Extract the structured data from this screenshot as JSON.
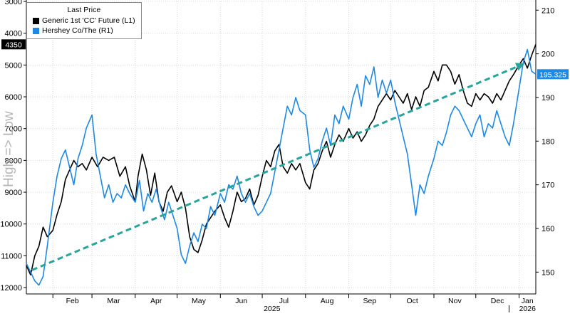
{
  "legend": {
    "title": "Last Price",
    "items": [
      {
        "label": "Generic 1st 'CC' Future  (L1)",
        "color": "#000000"
      },
      {
        "label": "Hershey Co/The  (R1)",
        "color": "#1e88e5"
      }
    ]
  },
  "side_label": "High => Low",
  "chart_data": {
    "type": "line",
    "xlabel": "2025",
    "x_secondary_label": "2026",
    "x_ticks": [
      "Feb",
      "Mar",
      "Apr",
      "May",
      "Jun",
      "Jul",
      "Aug",
      "Sep",
      "Oct",
      "Nov",
      "Dec",
      "Jan"
    ],
    "x_range": [
      "2025-01-13",
      "2026-01-13"
    ],
    "left_axis": {
      "inverted": true,
      "range": [
        3000,
        12200
      ],
      "ticks": [
        3000,
        4000,
        5000,
        6000,
        7000,
        8000,
        9000,
        10000,
        11000,
        12000
      ]
    },
    "right_axis": {
      "range": [
        145,
        212
      ],
      "ticks": [
        150,
        160,
        170,
        180,
        190,
        200,
        210
      ]
    },
    "last_value_labels": {
      "left": "4350",
      "right": "195.325"
    },
    "series": [
      {
        "name": "Generic 1st 'CC' Future  (L1)",
        "axis": "left",
        "color": "#000000",
        "points": [
          [
            "2025-01-13",
            11300
          ],
          [
            "2025-01-16",
            11600
          ],
          [
            "2025-01-19",
            11000
          ],
          [
            "2025-01-22",
            10700
          ],
          [
            "2025-01-25",
            10100
          ],
          [
            "2025-01-28",
            10400
          ],
          [
            "2025-02-01",
            10200
          ],
          [
            "2025-02-04",
            9700
          ],
          [
            "2025-02-07",
            9300
          ],
          [
            "2025-02-10",
            8600
          ],
          [
            "2025-02-13",
            8300
          ],
          [
            "2025-02-16",
            8000
          ],
          [
            "2025-02-19",
            8200
          ],
          [
            "2025-02-22",
            8100
          ],
          [
            "2025-02-25",
            8300
          ],
          [
            "2025-03-01",
            7900
          ],
          [
            "2025-03-05",
            8200
          ],
          [
            "2025-03-09",
            7900
          ],
          [
            "2025-03-13",
            8000
          ],
          [
            "2025-03-17",
            7900
          ],
          [
            "2025-03-21",
            8500
          ],
          [
            "2025-03-25",
            8200
          ],
          [
            "2025-03-28",
            8800
          ],
          [
            "2025-04-01",
            9300
          ],
          [
            "2025-04-03",
            8500
          ],
          [
            "2025-04-06",
            7800
          ],
          [
            "2025-04-09",
            8300
          ],
          [
            "2025-04-12",
            9100
          ],
          [
            "2025-04-15",
            8400
          ],
          [
            "2025-04-18",
            9300
          ],
          [
            "2025-04-21",
            9600
          ],
          [
            "2025-04-24",
            9000
          ],
          [
            "2025-04-27",
            8800
          ],
          [
            "2025-05-01",
            9300
          ],
          [
            "2025-05-04",
            9000
          ],
          [
            "2025-05-07",
            9500
          ],
          [
            "2025-05-10",
            10400
          ],
          [
            "2025-05-13",
            10800
          ],
          [
            "2025-05-16",
            10900
          ],
          [
            "2025-05-19",
            10500
          ],
          [
            "2025-05-22",
            10000
          ],
          [
            "2025-05-25",
            9800
          ],
          [
            "2025-05-28",
            9600
          ],
          [
            "2025-06-01",
            9400
          ],
          [
            "2025-06-04",
            9800
          ],
          [
            "2025-06-07",
            10100
          ],
          [
            "2025-06-10",
            9600
          ],
          [
            "2025-06-13",
            9000
          ],
          [
            "2025-06-16",
            9300
          ],
          [
            "2025-06-19",
            9200
          ],
          [
            "2025-06-22",
            8900
          ],
          [
            "2025-06-25",
            9400
          ],
          [
            "2025-06-28",
            9100
          ],
          [
            "2025-07-01",
            8500
          ],
          [
            "2025-07-04",
            8000
          ],
          [
            "2025-07-07",
            8200
          ],
          [
            "2025-07-10",
            7700
          ],
          [
            "2025-07-13",
            7500
          ],
          [
            "2025-07-16",
            8200
          ],
          [
            "2025-07-19",
            8400
          ],
          [
            "2025-07-22",
            8100
          ],
          [
            "2025-07-25",
            8300
          ],
          [
            "2025-07-28",
            8100
          ],
          [
            "2025-08-01",
            8700
          ],
          [
            "2025-08-04",
            8900
          ],
          [
            "2025-08-07",
            8300
          ],
          [
            "2025-08-10",
            8100
          ],
          [
            "2025-08-13",
            7700
          ],
          [
            "2025-08-16",
            7400
          ],
          [
            "2025-08-19",
            7900
          ],
          [
            "2025-08-22",
            7500
          ],
          [
            "2025-08-25",
            7200
          ],
          [
            "2025-08-28",
            7400
          ],
          [
            "2025-09-01",
            7000
          ],
          [
            "2025-09-04",
            7300
          ],
          [
            "2025-09-07",
            7100
          ],
          [
            "2025-09-10",
            7400
          ],
          [
            "2025-09-13",
            7200
          ],
          [
            "2025-09-16",
            6900
          ],
          [
            "2025-09-19",
            6700
          ],
          [
            "2025-09-22",
            6300
          ],
          [
            "2025-09-25",
            6100
          ],
          [
            "2025-09-28",
            5900
          ],
          [
            "2025-10-01",
            6100
          ],
          [
            "2025-10-04",
            5800
          ],
          [
            "2025-10-07",
            6000
          ],
          [
            "2025-10-10",
            6200
          ],
          [
            "2025-10-13",
            5900
          ],
          [
            "2025-10-16",
            6400
          ],
          [
            "2025-10-19",
            6000
          ],
          [
            "2025-10-22",
            6300
          ],
          [
            "2025-10-25",
            5800
          ],
          [
            "2025-10-28",
            5700
          ],
          [
            "2025-11-01",
            5200
          ],
          [
            "2025-11-04",
            5500
          ],
          [
            "2025-11-07",
            5000
          ],
          [
            "2025-11-10",
            5000
          ],
          [
            "2025-11-13",
            5200
          ],
          [
            "2025-11-16",
            5600
          ],
          [
            "2025-11-19",
            5300
          ],
          [
            "2025-11-22",
            5800
          ],
          [
            "2025-11-25",
            6200
          ],
          [
            "2025-11-28",
            6300
          ],
          [
            "2025-12-01",
            5900
          ],
          [
            "2025-12-04",
            6100
          ],
          [
            "2025-12-07",
            5900
          ],
          [
            "2025-12-10",
            6000
          ],
          [
            "2025-12-13",
            6200
          ],
          [
            "2025-12-16",
            5900
          ],
          [
            "2025-12-19",
            6100
          ],
          [
            "2025-12-22",
            5800
          ],
          [
            "2025-12-25",
            5500
          ],
          [
            "2025-12-28",
            5300
          ],
          [
            "2026-01-01",
            5000
          ],
          [
            "2026-01-04",
            4800
          ],
          [
            "2026-01-07",
            5100
          ],
          [
            "2026-01-10",
            4700
          ],
          [
            "2026-01-13",
            4350
          ]
        ]
      },
      {
        "name": "Hershey Co/The  (R1)",
        "axis": "right",
        "color": "#1e88e5",
        "points": [
          [
            "2025-01-13",
            152
          ],
          [
            "2025-01-16",
            150
          ],
          [
            "2025-01-19",
            148
          ],
          [
            "2025-01-22",
            147
          ],
          [
            "2025-01-25",
            149
          ],
          [
            "2025-01-28",
            156
          ],
          [
            "2025-02-01",
            166
          ],
          [
            "2025-02-04",
            172
          ],
          [
            "2025-02-07",
            176
          ],
          [
            "2025-02-10",
            178
          ],
          [
            "2025-02-13",
            174
          ],
          [
            "2025-02-16",
            170
          ],
          [
            "2025-02-19",
            176
          ],
          [
            "2025-02-22",
            179
          ],
          [
            "2025-02-25",
            183
          ],
          [
            "2025-03-01",
            186
          ],
          [
            "2025-03-04",
            177
          ],
          [
            "2025-03-07",
            172
          ],
          [
            "2025-03-10",
            167
          ],
          [
            "2025-03-13",
            170
          ],
          [
            "2025-03-16",
            166
          ],
          [
            "2025-03-19",
            168
          ],
          [
            "2025-03-22",
            167
          ],
          [
            "2025-03-25",
            170
          ],
          [
            "2025-03-28",
            168
          ],
          [
            "2025-04-01",
            166
          ],
          [
            "2025-04-04",
            171
          ],
          [
            "2025-04-07",
            164
          ],
          [
            "2025-04-10",
            168
          ],
          [
            "2025-04-13",
            166
          ],
          [
            "2025-04-16",
            169
          ],
          [
            "2025-04-19",
            165
          ],
          [
            "2025-04-22",
            162
          ],
          [
            "2025-04-25",
            166
          ],
          [
            "2025-04-28",
            163
          ],
          [
            "2025-05-01",
            160
          ],
          [
            "2025-05-04",
            154
          ],
          [
            "2025-05-07",
            152
          ],
          [
            "2025-05-10",
            156
          ],
          [
            "2025-05-13",
            159
          ],
          [
            "2025-05-16",
            157
          ],
          [
            "2025-05-19",
            161
          ],
          [
            "2025-05-22",
            160
          ],
          [
            "2025-05-25",
            165
          ],
          [
            "2025-05-28",
            163
          ],
          [
            "2025-06-01",
            168
          ],
          [
            "2025-06-04",
            166
          ],
          [
            "2025-06-07",
            170
          ],
          [
            "2025-06-10",
            169
          ],
          [
            "2025-06-13",
            172
          ],
          [
            "2025-06-16",
            168
          ],
          [
            "2025-06-19",
            166
          ],
          [
            "2025-06-22",
            168
          ],
          [
            "2025-06-25",
            165
          ],
          [
            "2025-06-28",
            163
          ],
          [
            "2025-07-01",
            164
          ],
          [
            "2025-07-04",
            166
          ],
          [
            "2025-07-07",
            168
          ],
          [
            "2025-07-10",
            173
          ],
          [
            "2025-07-13",
            178
          ],
          [
            "2025-07-16",
            183
          ],
          [
            "2025-07-19",
            188
          ],
          [
            "2025-07-22",
            186
          ],
          [
            "2025-07-25",
            190
          ],
          [
            "2025-07-28",
            187
          ],
          [
            "2025-08-01",
            186
          ],
          [
            "2025-08-04",
            178
          ],
          [
            "2025-08-07",
            174
          ],
          [
            "2025-08-10",
            176
          ],
          [
            "2025-08-13",
            180
          ],
          [
            "2025-08-16",
            183
          ],
          [
            "2025-08-19",
            179
          ],
          [
            "2025-08-22",
            186
          ],
          [
            "2025-08-25",
            184
          ],
          [
            "2025-08-28",
            188
          ],
          [
            "2025-09-01",
            185
          ],
          [
            "2025-09-04",
            190
          ],
          [
            "2025-09-07",
            193
          ],
          [
            "2025-09-10",
            188
          ],
          [
            "2025-09-13",
            195
          ],
          [
            "2025-09-16",
            193
          ],
          [
            "2025-09-19",
            197
          ],
          [
            "2025-09-22",
            190
          ],
          [
            "2025-09-25",
            194
          ],
          [
            "2025-09-28",
            191
          ],
          [
            "2025-10-01",
            194
          ],
          [
            "2025-10-04",
            189
          ],
          [
            "2025-10-07",
            185
          ],
          [
            "2025-10-10",
            181
          ],
          [
            "2025-10-13",
            177
          ],
          [
            "2025-10-16",
            170
          ],
          [
            "2025-10-19",
            163
          ],
          [
            "2025-10-22",
            170
          ],
          [
            "2025-10-25",
            168
          ],
          [
            "2025-10-28",
            172
          ],
          [
            "2025-11-01",
            176
          ],
          [
            "2025-11-04",
            180
          ],
          [
            "2025-11-07",
            179
          ],
          [
            "2025-11-10",
            182
          ],
          [
            "2025-11-13",
            186
          ],
          [
            "2025-11-16",
            188
          ],
          [
            "2025-11-19",
            187
          ],
          [
            "2025-11-22",
            185
          ],
          [
            "2025-11-25",
            183
          ],
          [
            "2025-11-28",
            181
          ],
          [
            "2025-12-01",
            184
          ],
          [
            "2025-12-04",
            186
          ],
          [
            "2025-12-07",
            181
          ],
          [
            "2025-12-10",
            184
          ],
          [
            "2025-12-13",
            183
          ],
          [
            "2025-12-16",
            187
          ],
          [
            "2025-12-19",
            184
          ],
          [
            "2025-12-22",
            181
          ],
          [
            "2025-12-25",
            179
          ],
          [
            "2025-12-28",
            184
          ],
          [
            "2026-01-01",
            192
          ],
          [
            "2026-01-04",
            198
          ],
          [
            "2026-01-07",
            201
          ],
          [
            "2026-01-10",
            196
          ],
          [
            "2026-01-13",
            195.325
          ]
        ]
      }
    ],
    "annotation_arrow": {
      "color": "#26a69a",
      "style": "dashed",
      "from": [
        "2025-01-17",
        11450
      ],
      "to": [
        "2026-01-05",
        4950
      ]
    }
  }
}
